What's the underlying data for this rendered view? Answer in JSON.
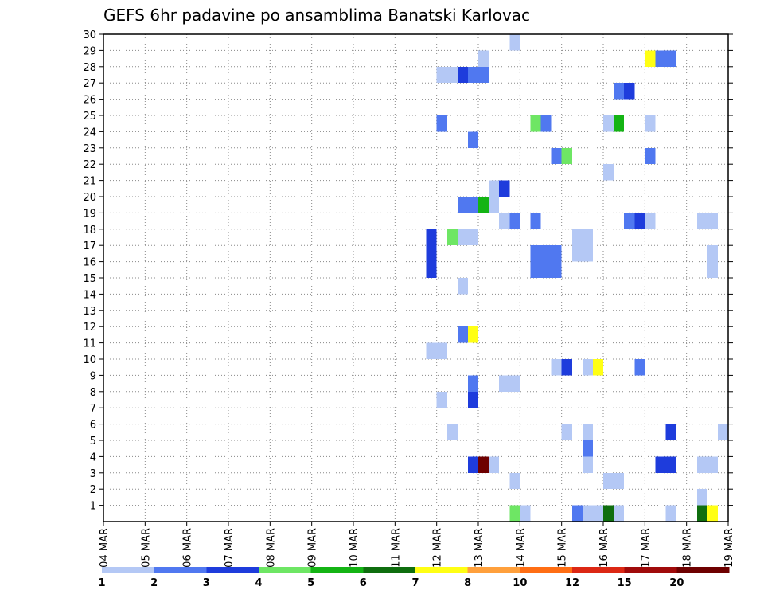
{
  "chart_data": {
    "type": "heatmap",
    "title": "GEFS 6hr padavine po ansamblima Banatski Karlovac",
    "xlabel": "",
    "ylabel": "",
    "x_tick_labels": [
      "04 MAR",
      "05 MAR",
      "06 MAR",
      "07 MAR",
      "08 MAR",
      "09 MAR",
      "10 MAR",
      "11 MAR",
      "12 MAR",
      "13 MAR",
      "14 MAR",
      "15 MAR",
      "16 MAR",
      "17 MAR",
      "18 MAR",
      "19 MAR"
    ],
    "x_unit": "6-hour step",
    "xlim": [
      0,
      60
    ],
    "y_tick_labels": [
      "1",
      "2",
      "3",
      "4",
      "5",
      "6",
      "7",
      "8",
      "9",
      "10",
      "11",
      "12",
      "13",
      "14",
      "15",
      "16",
      "17",
      "18",
      "19",
      "20",
      "21",
      "22",
      "23",
      "24",
      "25",
      "26",
      "27",
      "28",
      "29",
      "30"
    ],
    "ylim": [
      0,
      30
    ],
    "grid": true,
    "legend_placement": "bottom",
    "color_scale": {
      "colors": [
        "#b4c8f5",
        "#5078f0",
        "#1e3cdc",
        "#6ee664",
        "#14b414",
        "#0f6e0f",
        "#ffff14",
        "#ffa03c",
        "#ff6e14",
        "#dc2814",
        "#a00a0a",
        "#6e0000"
      ],
      "labels": [
        "1",
        "2",
        "3",
        "4",
        "5",
        "6",
        "7",
        "8",
        "10",
        "12",
        "15",
        "20"
      ]
    },
    "cells": [
      {
        "t": 39.5,
        "m": 0,
        "c": 4
      },
      {
        "t": 40.5,
        "m": 0,
        "c": 1
      },
      {
        "t": 45.5,
        "m": 0,
        "c": 2
      },
      {
        "t": 46.5,
        "m": 0,
        "c": 1
      },
      {
        "t": 47.5,
        "m": 0,
        "c": 1
      },
      {
        "t": 48.5,
        "m": 0,
        "c": 6
      },
      {
        "t": 49.5,
        "m": 0,
        "c": 1
      },
      {
        "t": 54.5,
        "m": 0,
        "c": 1
      },
      {
        "t": 57.5,
        "m": 0,
        "c": 6
      },
      {
        "t": 58.5,
        "m": 0,
        "c": 7
      },
      {
        "t": 57.5,
        "m": 1,
        "c": 1
      },
      {
        "t": 39.5,
        "m": 2,
        "c": 1
      },
      {
        "t": 48.5,
        "m": 2,
        "c": 1
      },
      {
        "t": 49.5,
        "m": 2,
        "c": 1
      },
      {
        "t": 35.5,
        "m": 3,
        "c": 3
      },
      {
        "t": 36.5,
        "m": 3,
        "c": 12
      },
      {
        "t": 37.5,
        "m": 3,
        "c": 1
      },
      {
        "t": 46.5,
        "m": 3,
        "c": 1
      },
      {
        "t": 53.5,
        "m": 3,
        "c": 3
      },
      {
        "t": 54.5,
        "m": 3,
        "c": 3
      },
      {
        "t": 57.5,
        "m": 3,
        "c": 1
      },
      {
        "t": 58.5,
        "m": 3,
        "c": 1
      },
      {
        "t": 46.5,
        "m": 4,
        "c": 2
      },
      {
        "t": 33.5,
        "m": 5,
        "c": 1
      },
      {
        "t": 44.5,
        "m": 5,
        "c": 1
      },
      {
        "t": 46.5,
        "m": 5,
        "c": 1
      },
      {
        "t": 54.5,
        "m": 5,
        "c": 3
      },
      {
        "t": 59.5,
        "m": 5,
        "c": 1
      },
      {
        "t": 32.5,
        "m": 7,
        "c": 1
      },
      {
        "t": 35.5,
        "m": 7,
        "c": 3
      },
      {
        "t": 35.5,
        "m": 8,
        "c": 2
      },
      {
        "t": 38.5,
        "m": 8,
        "c": 1
      },
      {
        "t": 39.5,
        "m": 8,
        "c": 1
      },
      {
        "t": 43.5,
        "m": 9,
        "c": 1
      },
      {
        "t": 44.5,
        "m": 9,
        "c": 3
      },
      {
        "t": 46.5,
        "m": 9,
        "c": 1
      },
      {
        "t": 47.5,
        "m": 9,
        "c": 7
      },
      {
        "t": 51.5,
        "m": 9,
        "c": 2
      },
      {
        "t": 31.5,
        "m": 10,
        "c": 1
      },
      {
        "t": 32.5,
        "m": 10,
        "c": 1
      },
      {
        "t": 34.5,
        "m": 11,
        "c": 2
      },
      {
        "t": 35.5,
        "m": 11,
        "c": 7
      },
      {
        "t": 34.5,
        "m": 14,
        "c": 1
      },
      {
        "t": 31.5,
        "m": 15,
        "c": 3
      },
      {
        "t": 41.5,
        "m": 15,
        "c": 2
      },
      {
        "t": 42.5,
        "m": 15,
        "c": 2
      },
      {
        "t": 43.5,
        "m": 15,
        "c": 2
      },
      {
        "t": 58.5,
        "m": 15,
        "c": 1
      },
      {
        "t": 31.5,
        "m": 16,
        "c": 3
      },
      {
        "t": 41.5,
        "m": 16,
        "c": 2
      },
      {
        "t": 42.5,
        "m": 16,
        "c": 2
      },
      {
        "t": 43.5,
        "m": 16,
        "c": 2
      },
      {
        "t": 45.5,
        "m": 16,
        "c": 1
      },
      {
        "t": 46.5,
        "m": 16,
        "c": 1
      },
      {
        "t": 58.5,
        "m": 16,
        "c": 1
      },
      {
        "t": 31.5,
        "m": 17,
        "c": 3
      },
      {
        "t": 33.5,
        "m": 17,
        "c": 4
      },
      {
        "t": 34.5,
        "m": 17,
        "c": 1
      },
      {
        "t": 35.5,
        "m": 17,
        "c": 1
      },
      {
        "t": 45.5,
        "m": 17,
        "c": 1
      },
      {
        "t": 46.5,
        "m": 17,
        "c": 1
      },
      {
        "t": 38.5,
        "m": 18,
        "c": 1
      },
      {
        "t": 39.5,
        "m": 18,
        "c": 2
      },
      {
        "t": 41.5,
        "m": 18,
        "c": 2
      },
      {
        "t": 50.5,
        "m": 18,
        "c": 2
      },
      {
        "t": 51.5,
        "m": 18,
        "c": 3
      },
      {
        "t": 52.5,
        "m": 18,
        "c": 1
      },
      {
        "t": 57.5,
        "m": 18,
        "c": 1
      },
      {
        "t": 58.5,
        "m": 18,
        "c": 1
      },
      {
        "t": 34.5,
        "m": 19,
        "c": 2
      },
      {
        "t": 35.5,
        "m": 19,
        "c": 2
      },
      {
        "t": 36.5,
        "m": 19,
        "c": 5
      },
      {
        "t": 37.5,
        "m": 19,
        "c": 1
      },
      {
        "t": 37.5,
        "m": 20,
        "c": 1
      },
      {
        "t": 38.5,
        "m": 20,
        "c": 3
      },
      {
        "t": 48.5,
        "m": 21,
        "c": 1
      },
      {
        "t": 43.5,
        "m": 22,
        "c": 2
      },
      {
        "t": 44.5,
        "m": 22,
        "c": 4
      },
      {
        "t": 52.5,
        "m": 22,
        "c": 2
      },
      {
        "t": 35.5,
        "m": 23,
        "c": 2
      },
      {
        "t": 32.5,
        "m": 24,
        "c": 2
      },
      {
        "t": 41.5,
        "m": 24,
        "c": 4
      },
      {
        "t": 42.5,
        "m": 24,
        "c": 2
      },
      {
        "t": 48.5,
        "m": 24,
        "c": 1
      },
      {
        "t": 49.5,
        "m": 24,
        "c": 5
      },
      {
        "t": 52.5,
        "m": 24,
        "c": 1
      },
      {
        "t": 49.5,
        "m": 26,
        "c": 2
      },
      {
        "t": 50.5,
        "m": 26,
        "c": 3
      },
      {
        "t": 32.5,
        "m": 27,
        "c": 1
      },
      {
        "t": 33.5,
        "m": 27,
        "c": 1
      },
      {
        "t": 34.5,
        "m": 27,
        "c": 3
      },
      {
        "t": 35.5,
        "m": 27,
        "c": 2
      },
      {
        "t": 36.5,
        "m": 27,
        "c": 2
      },
      {
        "t": 36.5,
        "m": 28,
        "c": 1
      },
      {
        "t": 52.5,
        "m": 28,
        "c": 7
      },
      {
        "t": 53.5,
        "m": 28,
        "c": 2
      },
      {
        "t": 54.5,
        "m": 28,
        "c": 2
      },
      {
        "t": 39.5,
        "m": 29,
        "c": 1
      }
    ]
  }
}
